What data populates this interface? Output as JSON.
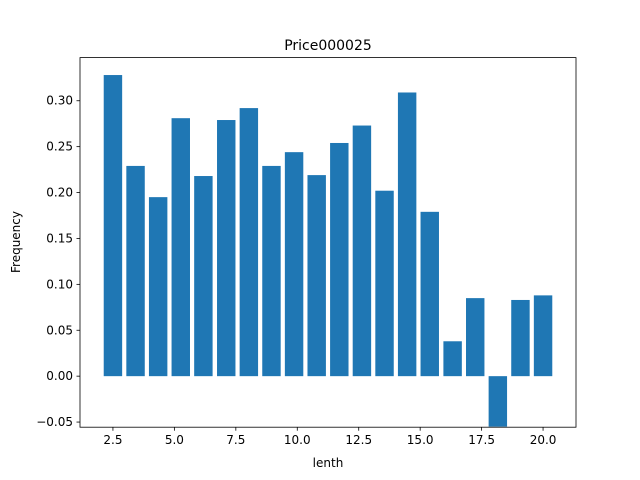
{
  "chart_data": {
    "type": "bar",
    "title": "Price000025",
    "x_label": "lenth",
    "y_label": "Frequency",
    "x": [
      2.5,
      3.42,
      4.34,
      5.26,
      6.18,
      7.11,
      8.03,
      8.95,
      9.87,
      10.79,
      11.71,
      12.63,
      13.55,
      14.47,
      15.39,
      16.32,
      17.24,
      18.16,
      19.08,
      20.0
    ],
    "values": [
      0.328,
      0.229,
      0.195,
      0.281,
      0.218,
      0.279,
      0.292,
      0.229,
      0.244,
      0.219,
      0.254,
      0.273,
      0.202,
      0.309,
      0.179,
      0.038,
      0.085,
      -0.055,
      0.083,
      0.088
    ],
    "bar_width": 0.75,
    "color": "#1f77b4",
    "xlim": [
      1.16,
      21.34
    ],
    "xticks": [
      2.5,
      {
        "value": 5,
        "label": "5.0"
      },
      7.5,
      {
        "value": 10,
        "label": "10.0"
      },
      12.5,
      {
        "value": 15,
        "label": "15.0"
      },
      17.5,
      {
        "value": 20,
        "label": "20.0"
      }
    ],
    "ylim": [
      -0.0556,
      0.347
    ],
    "yticks": [
      {
        "value": -0.05,
        "label": "−0.05"
      },
      {
        "value": 0,
        "label": "0.00"
      },
      {
        "value": 0.05,
        "label": "0.05"
      },
      {
        "value": 0.1,
        "label": "0.10"
      },
      {
        "value": 0.15,
        "label": "0.15"
      },
      {
        "value": 0.2,
        "label": "0.20"
      },
      {
        "value": 0.25,
        "label": "0.25"
      },
      {
        "value": 0.3,
        "label": "0.30"
      }
    ]
  }
}
